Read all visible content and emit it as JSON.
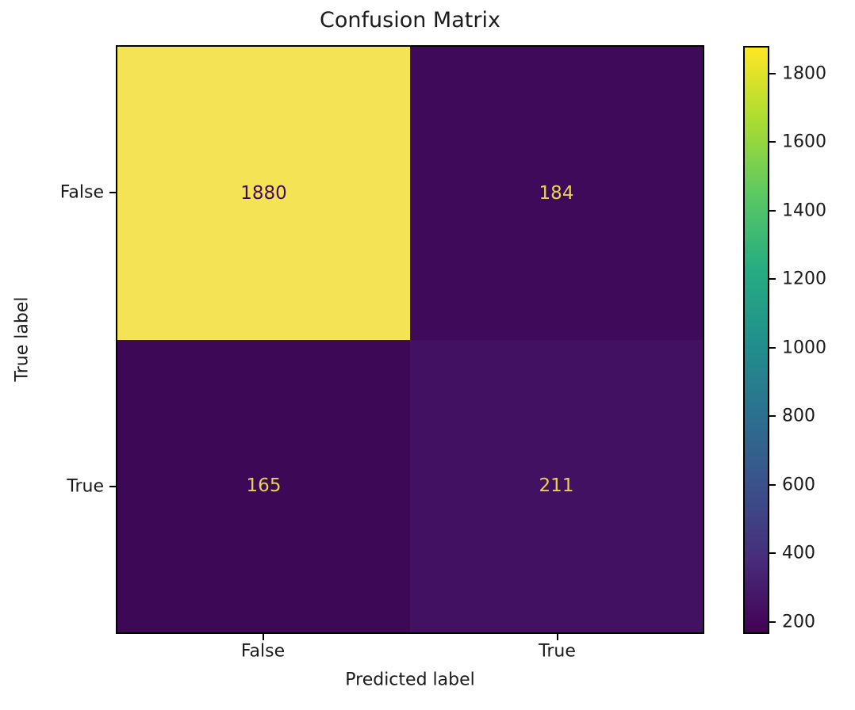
{
  "chart_data": {
    "type": "heatmap",
    "title": "Confusion Matrix",
    "xlabel": "Predicted label",
    "ylabel": "True label",
    "x_tick_labels": [
      "False",
      "True"
    ],
    "y_tick_labels": [
      "False",
      "True"
    ],
    "matrix": [
      [
        1880,
        184
      ],
      [
        165,
        211
      ]
    ],
    "cell_colors": [
      [
        "#f4e455",
        "#3e0a59"
      ],
      [
        "#3d0856",
        "#431161"
      ]
    ],
    "cell_text_colors": [
      [
        "#45095a",
        "#e9d34e"
      ],
      [
        "#e9d34e",
        "#e9d34e"
      ]
    ],
    "colormap": "viridis",
    "legend_position": "right-colorbar",
    "grid": false,
    "colorbar": {
      "vmin": 165,
      "vmax": 1880,
      "ticks": [
        200,
        400,
        600,
        800,
        1000,
        1200,
        1400,
        1600,
        1800
      ],
      "gradient_stops": [
        {
          "t": 0.0,
          "color": "#440154"
        },
        {
          "t": 0.125,
          "color": "#472d7b"
        },
        {
          "t": 0.25,
          "color": "#3b518b"
        },
        {
          "t": 0.375,
          "color": "#2c718e"
        },
        {
          "t": 0.5,
          "color": "#21918c"
        },
        {
          "t": 0.625,
          "color": "#27ad81"
        },
        {
          "t": 0.75,
          "color": "#5cc863"
        },
        {
          "t": 0.875,
          "color": "#aadc32"
        },
        {
          "t": 1.0,
          "color": "#fde725"
        }
      ]
    }
  }
}
